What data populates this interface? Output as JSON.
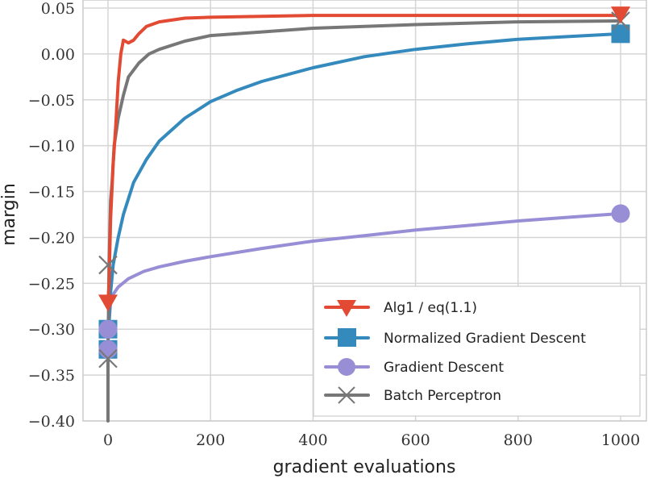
{
  "chart_data": {
    "type": "line",
    "title": "",
    "xlabel": "gradient evaluations",
    "ylabel": "margin",
    "xlim": [
      -35,
      1035
    ],
    "ylim": [
      -0.4,
      0.05
    ],
    "xticks": [
      0,
      200,
      400,
      600,
      800,
      1000
    ],
    "xtick_labels": [
      "0",
      "200",
      "400",
      "600",
      "800",
      "1000"
    ],
    "yticks": [
      0.05,
      0.0,
      -0.05,
      -0.1,
      -0.15,
      -0.2,
      -0.25,
      -0.3,
      -0.35,
      -0.4
    ],
    "ytick_labels": [
      "0.05",
      "0.00",
      "−0.05",
      "−0.10",
      "−0.15",
      "−0.20",
      "−0.25",
      "−0.30",
      "−0.35",
      "−0.40"
    ],
    "grid": true,
    "legend_position": "lower right",
    "series": [
      {
        "name": "Alg1 / eq(1.1)",
        "color": "#E24A33",
        "marker": "triangle-down",
        "x": [
          0,
          2,
          5,
          10,
          15,
          20,
          25,
          30,
          40,
          50,
          60,
          75,
          100,
          150,
          200,
          300,
          400,
          600,
          800,
          1000
        ],
        "y": [
          -0.272,
          -0.25,
          -0.18,
          -0.12,
          -0.08,
          -0.03,
          0.0,
          0.015,
          0.012,
          0.015,
          0.022,
          0.03,
          0.035,
          0.039,
          0.04,
          0.041,
          0.042,
          0.042,
          0.042,
          0.042
        ]
      },
      {
        "name": "Normalized Gradient Descent",
        "color": "#348ABD",
        "marker": "square",
        "x": [
          0,
          5,
          10,
          20,
          30,
          50,
          75,
          100,
          150,
          200,
          250,
          300,
          400,
          500,
          600,
          700,
          800,
          900,
          1000
        ],
        "y": [
          -0.31,
          -0.26,
          -0.23,
          -0.2,
          -0.175,
          -0.14,
          -0.115,
          -0.095,
          -0.07,
          -0.052,
          -0.04,
          -0.03,
          -0.015,
          -0.003,
          0.005,
          0.011,
          0.016,
          0.019,
          0.022
        ]
      },
      {
        "name": "Gradient Descent",
        "color": "#988ED5",
        "marker": "circle",
        "x": [
          0,
          5,
          10,
          20,
          40,
          70,
          100,
          150,
          200,
          300,
          400,
          500,
          600,
          700,
          800,
          900,
          1000
        ],
        "y": [
          -0.31,
          -0.27,
          -0.262,
          -0.254,
          -0.245,
          -0.237,
          -0.232,
          -0.226,
          -0.221,
          -0.212,
          -0.204,
          -0.198,
          -0.192,
          -0.187,
          -0.182,
          -0.178,
          -0.174
        ]
      },
      {
        "name": "Batch Perceptron",
        "color": "#777777",
        "marker": "x",
        "x": [
          0,
          0,
          2,
          5,
          8,
          12,
          16,
          20,
          30,
          40,
          60,
          80,
          100,
          150,
          200,
          300,
          400,
          600,
          800,
          1000
        ],
        "y": [
          -0.4,
          -0.33,
          -0.23,
          -0.16,
          -0.14,
          -0.1,
          -0.085,
          -0.07,
          -0.045,
          -0.025,
          -0.01,
          0.0,
          0.005,
          0.014,
          0.02,
          0.024,
          0.028,
          0.032,
          0.035,
          0.036
        ]
      }
    ]
  },
  "legend": {
    "items": [
      {
        "label": "Alg1 / eq(1.1)"
      },
      {
        "label": "Normalized Gradient Descent"
      },
      {
        "label": "Gradient Descent"
      },
      {
        "label": "Batch Perceptron"
      }
    ]
  }
}
